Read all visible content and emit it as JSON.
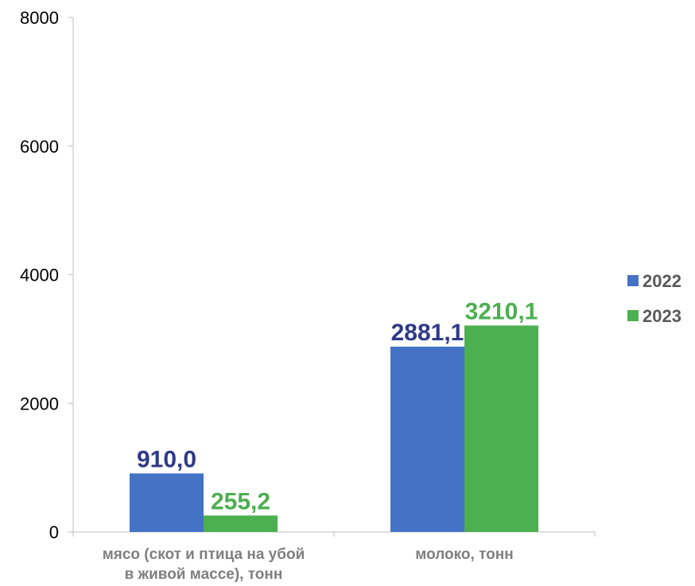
{
  "chart_data": {
    "type": "bar",
    "categories": [
      [
        "мясо (скот и птица на убой",
        "в живой массе), тонн"
      ],
      [
        "молоко, тонн"
      ]
    ],
    "series": [
      {
        "name": "2022",
        "values": [
          910.0,
          2881.1
        ],
        "labels": [
          "910,0",
          "2881,1"
        ],
        "color": "#4472c4",
        "label_color": "#2e3a87"
      },
      {
        "name": "2023",
        "values": [
          255.2,
          3210.1
        ],
        "labels": [
          "255,2",
          "3210,1"
        ],
        "color": "#4caf50",
        "label_color": "#4caf50"
      }
    ],
    "ylim": [
      0,
      8000
    ],
    "yticks": [
      "0",
      "2000",
      "4000",
      "6000",
      "8000"
    ],
    "grid": false,
    "legend_position": "right"
  }
}
